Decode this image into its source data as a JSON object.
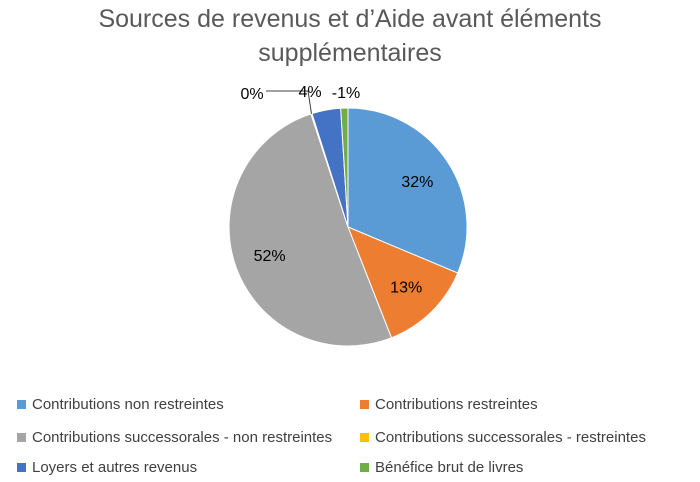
{
  "chart_data": {
    "type": "pie",
    "title": "Sources de revenus et d’Aide avant éléments supplémentaires",
    "title_lines": [
      "Sources de revenus et d’Aide avant éléments",
      "supplémentaires"
    ],
    "slices": [
      {
        "name": "Contributions non restreintes",
        "value": 32,
        "label": "32%",
        "color": "#5b9bd5"
      },
      {
        "name": "Contributions restreintes",
        "value": 13,
        "label": "13%",
        "color": "#ed7d31"
      },
      {
        "name": "Contributions successorales - non restreintes",
        "value": 52,
        "label": "52%",
        "color": "#a5a5a5"
      },
      {
        "name": "Contributions successorales - restreintes",
        "value": 0,
        "label": "0%",
        "color": "#ffc000"
      },
      {
        "name": "Loyers et autres revenus",
        "value": 4,
        "label": "4%",
        "color": "#4472c4"
      },
      {
        "name": "Bénéfice brut de livres",
        "value": -1,
        "label": "-1%",
        "color": "#70ad47"
      }
    ],
    "legend_position": "bottom"
  }
}
